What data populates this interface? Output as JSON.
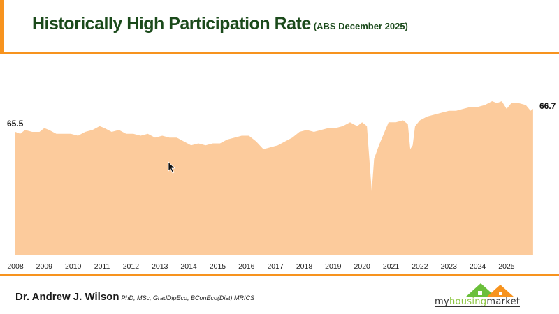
{
  "header": {
    "title": "Historically High Participation Rate",
    "subtitle": "(ABS December 2025)"
  },
  "footer": {
    "author": "Dr. Andrew J. Wilson",
    "credentials": "PhD, MSc, GradDipEco, BConEco(Dist) MRICS",
    "logo": {
      "prefix": "my",
      "middle": "housing",
      "suffix": "market"
    }
  },
  "colors": {
    "accent": "#f7931e",
    "area": "#fccb9c",
    "title": "#1b4a1b"
  },
  "chart_data": {
    "type": "area",
    "title": "",
    "xlabel": "",
    "ylabel": "",
    "grid": false,
    "legend": "none",
    "ylim": [
      59.1,
      68
    ],
    "x_ticks": [
      "2008",
      "2009",
      "2010",
      "2011",
      "2012",
      "2013",
      "2014",
      "2015",
      "2016",
      "2017",
      "2018",
      "2019",
      "2020",
      "2021",
      "2022",
      "2023",
      "2024",
      "2025"
    ],
    "annotations": {
      "start_label": "65.5",
      "end_label": "66.7"
    },
    "points": [
      [
        "2008-01",
        65.5
      ],
      [
        "2008-03",
        65.4
      ],
      [
        "2008-05",
        65.6
      ],
      [
        "2008-08",
        65.5
      ],
      [
        "2008-11",
        65.5
      ],
      [
        "2009-01",
        65.7
      ],
      [
        "2009-03",
        65.6
      ],
      [
        "2009-06",
        65.4
      ],
      [
        "2009-09",
        65.4
      ],
      [
        "2009-12",
        65.4
      ],
      [
        "2010-03",
        65.3
      ],
      [
        "2010-06",
        65.5
      ],
      [
        "2010-09",
        65.6
      ],
      [
        "2010-12",
        65.8
      ],
      [
        "2011-02",
        65.7
      ],
      [
        "2011-05",
        65.5
      ],
      [
        "2011-08",
        65.6
      ],
      [
        "2011-11",
        65.4
      ],
      [
        "2012-02",
        65.4
      ],
      [
        "2012-05",
        65.3
      ],
      [
        "2012-08",
        65.4
      ],
      [
        "2012-11",
        65.2
      ],
      [
        "2013-02",
        65.3
      ],
      [
        "2013-05",
        65.2
      ],
      [
        "2013-08",
        65.2
      ],
      [
        "2013-11",
        65.0
      ],
      [
        "2014-02",
        64.8
      ],
      [
        "2014-05",
        64.9
      ],
      [
        "2014-08",
        64.8
      ],
      [
        "2014-11",
        64.9
      ],
      [
        "2015-02",
        64.9
      ],
      [
        "2015-05",
        65.1
      ],
      [
        "2015-08",
        65.2
      ],
      [
        "2015-11",
        65.3
      ],
      [
        "2016-02",
        65.3
      ],
      [
        "2016-05",
        65.0
      ],
      [
        "2016-08",
        64.6
      ],
      [
        "2016-11",
        64.7
      ],
      [
        "2017-02",
        64.8
      ],
      [
        "2017-05",
        65.0
      ],
      [
        "2017-08",
        65.2
      ],
      [
        "2017-11",
        65.5
      ],
      [
        "2018-02",
        65.6
      ],
      [
        "2018-05",
        65.5
      ],
      [
        "2018-08",
        65.6
      ],
      [
        "2018-11",
        65.7
      ],
      [
        "2019-02",
        65.7
      ],
      [
        "2019-05",
        65.8
      ],
      [
        "2019-08",
        66.0
      ],
      [
        "2019-11",
        65.8
      ],
      [
        "2020-01",
        66.0
      ],
      [
        "2020-03",
        65.8
      ],
      [
        "2020-05",
        62.4
      ],
      [
        "2020-06",
        64.1
      ],
      [
        "2020-08",
        64.8
      ],
      [
        "2020-10",
        65.4
      ],
      [
        "2020-12",
        66.0
      ],
      [
        "2021-03",
        66.0
      ],
      [
        "2021-06",
        66.1
      ],
      [
        "2021-08",
        65.9
      ],
      [
        "2021-09",
        64.6
      ],
      [
        "2021-10",
        64.8
      ],
      [
        "2021-11",
        65.8
      ],
      [
        "2022-01",
        66.1
      ],
      [
        "2022-04",
        66.3
      ],
      [
        "2022-07",
        66.4
      ],
      [
        "2022-10",
        66.5
      ],
      [
        "2023-01",
        66.6
      ],
      [
        "2023-04",
        66.6
      ],
      [
        "2023-07",
        66.7
      ],
      [
        "2023-10",
        66.8
      ],
      [
        "2024-01",
        66.8
      ],
      [
        "2024-04",
        66.9
      ],
      [
        "2024-07",
        67.1
      ],
      [
        "2024-09",
        67.0
      ],
      [
        "2024-11",
        67.1
      ],
      [
        "2025-01",
        66.7
      ],
      [
        "2025-03",
        67.0
      ],
      [
        "2025-06",
        67.0
      ],
      [
        "2025-09",
        66.9
      ],
      [
        "2025-11",
        66.6
      ],
      [
        "2025-12",
        66.7
      ]
    ]
  }
}
